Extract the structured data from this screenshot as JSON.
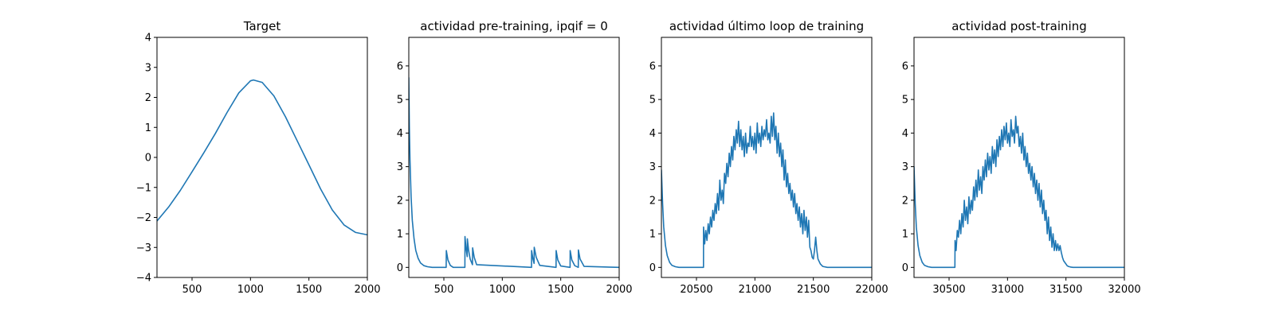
{
  "chart_data": [
    {
      "type": "line",
      "title": "Target",
      "xlim": [
        200,
        2000
      ],
      "ylim": [
        -4,
        4
      ],
      "xticks": [
        500,
        1000,
        1500,
        2000
      ],
      "yticks": [
        -4,
        -3,
        -2,
        -1,
        0,
        1,
        2,
        3,
        4
      ],
      "series": [
        {
          "color": "#1f77b4",
          "x": [
            200,
            300,
            400,
            500,
            600,
            700,
            800,
            900,
            1000,
            1025,
            1100,
            1200,
            1300,
            1400,
            1500,
            1600,
            1700,
            1800,
            1900,
            2000
          ],
          "y": [
            -2.12,
            -1.65,
            -1.1,
            -0.48,
            0.15,
            0.8,
            1.5,
            2.15,
            2.55,
            2.58,
            2.5,
            2.05,
            1.35,
            0.55,
            -0.25,
            -1.05,
            -1.75,
            -2.25,
            -2.5,
            -2.58
          ]
        }
      ]
    },
    {
      "type": "line",
      "title": "actividad pre-training, ipqif = 0",
      "xlim": [
        200,
        2000
      ],
      "ylim": [
        -0.3,
        6.85
      ],
      "xticks": [
        500,
        1000,
        1500,
        2000
      ],
      "yticks": [
        0,
        1,
        2,
        3,
        4,
        5,
        6
      ],
      "series": [
        {
          "color": "#1f77b4",
          "x": [
            200,
            205,
            210,
            220,
            230,
            245,
            260,
            280,
            300,
            330,
            360,
            400,
            520,
            521,
            535,
            555,
            580,
            680,
            681,
            690,
            700,
            701,
            712,
            725,
            745,
            746,
            760,
            780,
            1250,
            1251,
            1262,
            1272,
            1273,
            1290,
            1320,
            1460,
            1461,
            1475,
            1500,
            1580,
            1581,
            1595,
            1620,
            1650,
            1651,
            1665,
            1700,
            2000
          ],
          "y": [
            5.65,
            4.2,
            3.2,
            2.1,
            1.4,
            0.85,
            0.5,
            0.27,
            0.13,
            0.05,
            0.02,
            0.0,
            0.0,
            0.5,
            0.22,
            0.06,
            0.0,
            0.0,
            0.92,
            0.55,
            0.32,
            0.85,
            0.5,
            0.25,
            0.08,
            0.58,
            0.3,
            0.08,
            0.0,
            0.5,
            0.25,
            0.12,
            0.6,
            0.3,
            0.06,
            0.0,
            0.5,
            0.22,
            0.04,
            0.0,
            0.5,
            0.22,
            0.05,
            0.0,
            0.52,
            0.25,
            0.03,
            0.0
          ]
        }
      ]
    },
    {
      "type": "line",
      "title": "actividad último loop de training",
      "xlim": [
        20200,
        22000
      ],
      "ylim": [
        -0.3,
        6.85
      ],
      "xticks": [
        20500,
        21000,
        21500,
        22000
      ],
      "yticks": [
        0,
        1,
        2,
        3,
        4,
        5,
        6
      ],
      "series": [
        {
          "color": "#1f77b4",
          "x": [
            20200,
            20210,
            20220,
            20235,
            20250,
            20270,
            20290,
            20320,
            20350,
            20400,
            20560,
            20561,
            20570,
            20580,
            20590,
            20600,
            20610,
            20620,
            20630,
            20640,
            20650,
            20660,
            20670,
            20680,
            20690,
            20700,
            20710,
            20720,
            20730,
            20740,
            20750,
            20760,
            20770,
            20780,
            20790,
            20800,
            20810,
            20820,
            20830,
            20840,
            20850,
            20860,
            20870,
            20880,
            20890,
            20900,
            20910,
            20920,
            20930,
            20940,
            20950,
            20960,
            20970,
            20980,
            20990,
            21000,
            21010,
            21020,
            21030,
            21040,
            21050,
            21060,
            21070,
            21080,
            21090,
            21100,
            21110,
            21120,
            21130,
            21140,
            21150,
            21160,
            21170,
            21180,
            21190,
            21200,
            21210,
            21220,
            21230,
            21240,
            21250,
            21260,
            21270,
            21280,
            21290,
            21300,
            21310,
            21320,
            21330,
            21340,
            21350,
            21360,
            21370,
            21380,
            21390,
            21400,
            21410,
            21420,
            21430,
            21440,
            21450,
            21460,
            21470,
            21480,
            21490,
            21500,
            21510,
            21520,
            21530,
            21540,
            21560,
            21580,
            21620,
            21700,
            22000
          ],
          "y": [
            2.9,
            1.9,
            1.2,
            0.65,
            0.35,
            0.15,
            0.06,
            0.02,
            0.0,
            0.0,
            0.0,
            1.2,
            0.7,
            1.1,
            0.8,
            1.3,
            1.0,
            1.5,
            1.2,
            1.7,
            1.4,
            1.9,
            1.6,
            2.2,
            1.7,
            2.6,
            2.0,
            2.3,
            1.9,
            2.8,
            2.5,
            3.1,
            2.7,
            3.4,
            3.0,
            3.6,
            3.2,
            3.9,
            3.5,
            4.1,
            3.7,
            4.35,
            3.6,
            4.1,
            3.5,
            3.9,
            3.3,
            4.0,
            3.4,
            3.7,
            3.6,
            4.2,
            3.6,
            3.9,
            3.5,
            4.0,
            3.4,
            4.3,
            3.7,
            4.0,
            3.6,
            4.2,
            3.8,
            4.1,
            3.9,
            4.4,
            3.8,
            4.0,
            3.7,
            4.5,
            3.9,
            4.6,
            3.8,
            4.2,
            3.4,
            4.0,
            3.3,
            3.7,
            3.0,
            3.5,
            2.6,
            3.2,
            2.4,
            2.8,
            2.2,
            2.5,
            2.0,
            2.3,
            1.8,
            2.2,
            1.6,
            1.9,
            1.4,
            1.8,
            1.2,
            1.6,
            1.0,
            1.7,
            1.1,
            1.5,
            0.9,
            1.4,
            0.6,
            0.5,
            0.3,
            0.25,
            0.5,
            0.9,
            0.5,
            0.25,
            0.1,
            0.03,
            0.0,
            0.0,
            0.0
          ]
        }
      ]
    },
    {
      "type": "line",
      "title": "actividad post-training",
      "xlim": [
        30200,
        32000
      ],
      "ylim": [
        -0.3,
        6.85
      ],
      "xticks": [
        30500,
        31000,
        31500,
        32000
      ],
      "yticks": [
        0,
        1,
        2,
        3,
        4,
        5,
        6
      ],
      "series": [
        {
          "color": "#1f77b4",
          "x": [
            30200,
            30210,
            30220,
            30235,
            30250,
            30270,
            30290,
            30320,
            30350,
            30400,
            30550,
            30551,
            30560,
            30570,
            30580,
            30590,
            30600,
            30610,
            30620,
            30630,
            30640,
            30650,
            30660,
            30670,
            30680,
            30690,
            30700,
            30710,
            30720,
            30730,
            30740,
            30750,
            30760,
            30770,
            30780,
            30790,
            30800,
            30810,
            30820,
            30830,
            30840,
            30850,
            30860,
            30870,
            30880,
            30890,
            30900,
            30910,
            30920,
            30930,
            30940,
            30950,
            30960,
            30970,
            30980,
            30990,
            31000,
            31010,
            31020,
            31030,
            31040,
            31050,
            31060,
            31070,
            31080,
            31090,
            31100,
            31110,
            31120,
            31130,
            31140,
            31150,
            31160,
            31170,
            31180,
            31190,
            31200,
            31210,
            31220,
            31230,
            31240,
            31250,
            31260,
            31270,
            31280,
            31290,
            31300,
            31310,
            31320,
            31330,
            31340,
            31350,
            31360,
            31370,
            31380,
            31390,
            31400,
            31410,
            31420,
            31430,
            31440,
            31450,
            31460,
            31470,
            31480,
            31490,
            31500,
            31510,
            31520,
            31530,
            31540,
            31560,
            31580,
            31620,
            31700,
            32000
          ],
          "y": [
            3.0,
            1.9,
            1.2,
            0.65,
            0.35,
            0.15,
            0.06,
            0.02,
            0.0,
            0.0,
            0.0,
            0.8,
            0.5,
            1.1,
            0.9,
            1.4,
            1.0,
            1.6,
            1.2,
            2.0,
            1.4,
            1.8,
            1.3,
            2.1,
            1.6,
            2.0,
            1.7,
            2.4,
            2.0,
            2.6,
            2.1,
            2.9,
            2.3,
            2.7,
            2.2,
            3.0,
            2.6,
            3.2,
            2.7,
            3.4,
            2.9,
            3.3,
            2.8,
            3.6,
            3.1,
            3.5,
            3.0,
            3.8,
            3.3,
            3.9,
            3.5,
            4.1,
            3.6,
            4.2,
            3.8,
            4.3,
            3.7,
            4.0,
            3.6,
            4.4,
            3.9,
            4.1,
            3.7,
            4.5,
            4.0,
            4.2,
            3.6,
            3.9,
            3.4,
            4.0,
            3.2,
            3.6,
            3.0,
            3.4,
            2.8,
            3.1,
            2.6,
            3.0,
            2.4,
            2.8,
            2.2,
            2.6,
            2.0,
            2.5,
            1.8,
            2.3,
            1.6,
            2.0,
            1.4,
            1.7,
            1.0,
            1.5,
            0.8,
            1.2,
            0.6,
            1.0,
            0.5,
            0.8,
            0.5,
            0.7,
            0.5,
            0.65,
            0.45,
            0.3,
            0.2,
            0.15,
            0.1,
            0.05,
            0.03,
            0.02,
            0.01,
            0.0,
            0.0,
            0.0,
            0.0,
            0.0
          ]
        }
      ]
    }
  ]
}
